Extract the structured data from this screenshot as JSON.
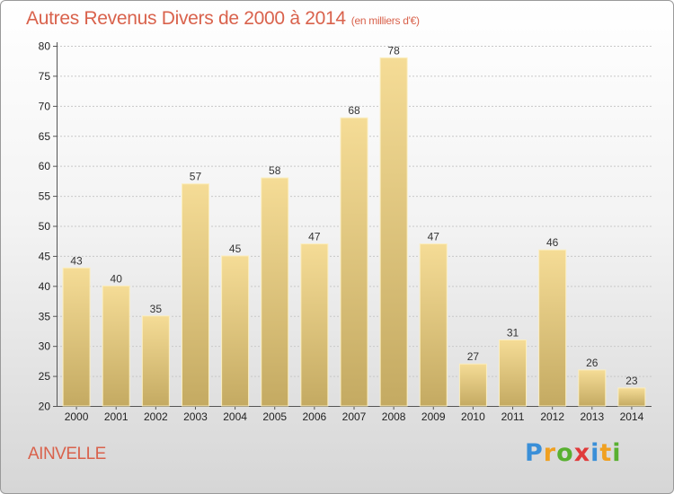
{
  "header": {
    "title": "Autres Revenus Divers de 2000 à 2014",
    "unit": "(en milliers d'€)"
  },
  "footer": {
    "town": "AINVELLE",
    "logo": [
      "P",
      "r",
      "o",
      "x",
      "i",
      "t",
      "i"
    ],
    "logo_colors": [
      "#3a8fd8",
      "#f0a020",
      "#58b030",
      "#e03a3a",
      "#3a8fd8",
      "#f0a020",
      "#58b030"
    ]
  },
  "chart_data": {
    "type": "bar",
    "title": "Autres Revenus Divers de 2000 à 2014",
    "subtitle": "(en milliers d'€)",
    "xlabel": "",
    "ylabel": "",
    "categories": [
      "2000",
      "2001",
      "2002",
      "2003",
      "2004",
      "2005",
      "2006",
      "2007",
      "2008",
      "2009",
      "2010",
      "2011",
      "2012",
      "2013",
      "2014"
    ],
    "values": [
      43,
      40,
      35,
      57,
      45,
      58,
      47,
      68,
      78,
      47,
      27,
      31,
      46,
      26,
      23
    ],
    "ylim": [
      20,
      80
    ],
    "yticks": [
      "20",
      "25",
      "30",
      "35",
      "40",
      "45",
      "50",
      "55",
      "60",
      "65",
      "70",
      "75",
      "80"
    ],
    "grid": true,
    "bar_color_top": "#f5dc96",
    "bar_color_bottom": "#c4aa62"
  }
}
